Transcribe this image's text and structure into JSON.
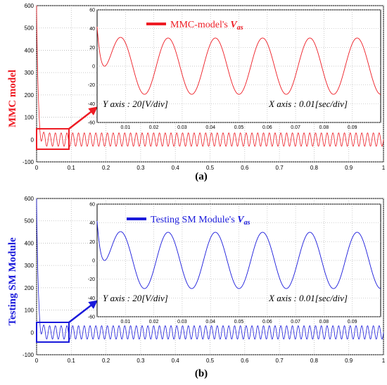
{
  "colors": {
    "top": "#ee1c24",
    "bottom": "#1a1adb",
    "grid": "#b8b8b8"
  },
  "chart_data": [
    {
      "type": "line",
      "caption": "(a)",
      "ylabel": "MMC model",
      "xlim": [
        0,
        1
      ],
      "ylim": [
        -100,
        600
      ],
      "x_ticks": [
        "0",
        "0.1",
        "0.2",
        "0.3",
        "0.4",
        "0.5",
        "0.6",
        "0.7",
        "0.8",
        "0.9",
        "1"
      ],
      "y_ticks": [
        "-100",
        "0",
        "100",
        "200",
        "300",
        "400",
        "500",
        "600"
      ],
      "series": [
        {
          "name": "MMC-model's Vas",
          "frequency_hz": 60,
          "amplitude": 30,
          "initial_peak": 600,
          "decay_s": 0.004
        }
      ],
      "inset": {
        "xlim": [
          0,
          0.1
        ],
        "ylim": [
          -60,
          60
        ],
        "x_ticks": [
          "0.01",
          "0.02",
          "0.03",
          "0.04",
          "0.05",
          "0.06",
          "0.07",
          "0.08",
          "0.09"
        ],
        "y_ticks": [
          "60",
          "40",
          "20",
          "0",
          "-20",
          "-40",
          "-60"
        ],
        "legend": {
          "prefix": "MMC-model's ",
          "var": "V",
          "sub": "as"
        },
        "y_axis_note": "Y axis : 20[V/div]",
        "x_axis_note": "X axis : 0.01[sec/div]"
      }
    },
    {
      "type": "line",
      "caption": "(b)",
      "ylabel": "Testing SM Module",
      "xlim": [
        0,
        1
      ],
      "ylim": [
        -100,
        600
      ],
      "x_ticks": [
        "0",
        "0.1",
        "0.2",
        "0.3",
        "0.4",
        "0.5",
        "0.6",
        "0.7",
        "0.8",
        "0.9",
        "1"
      ],
      "y_ticks": [
        "-100",
        "0",
        "100",
        "200",
        "300",
        "400",
        "500",
        "600"
      ],
      "series": [
        {
          "name": "Testing SM Module's Vas",
          "frequency_hz": 60,
          "amplitude": 30,
          "initial_peak": 600,
          "decay_s": 0.004
        }
      ],
      "inset": {
        "xlim": [
          0,
          0.1
        ],
        "ylim": [
          -60,
          60
        ],
        "x_ticks": [
          "0.01",
          "0.02",
          "0.03",
          "0.04",
          "0.05",
          "0.06",
          "0.07",
          "0.08",
          "0.09"
        ],
        "y_ticks": [
          "60",
          "40",
          "20",
          "0",
          "-20",
          "-40",
          "-60"
        ],
        "legend": {
          "prefix": "Testing SM Module's ",
          "var": "V",
          "sub": "as"
        },
        "y_axis_note": "Y axis : 20[V/div]",
        "x_axis_note": "X axis : 0.01[sec/div]"
      }
    }
  ]
}
